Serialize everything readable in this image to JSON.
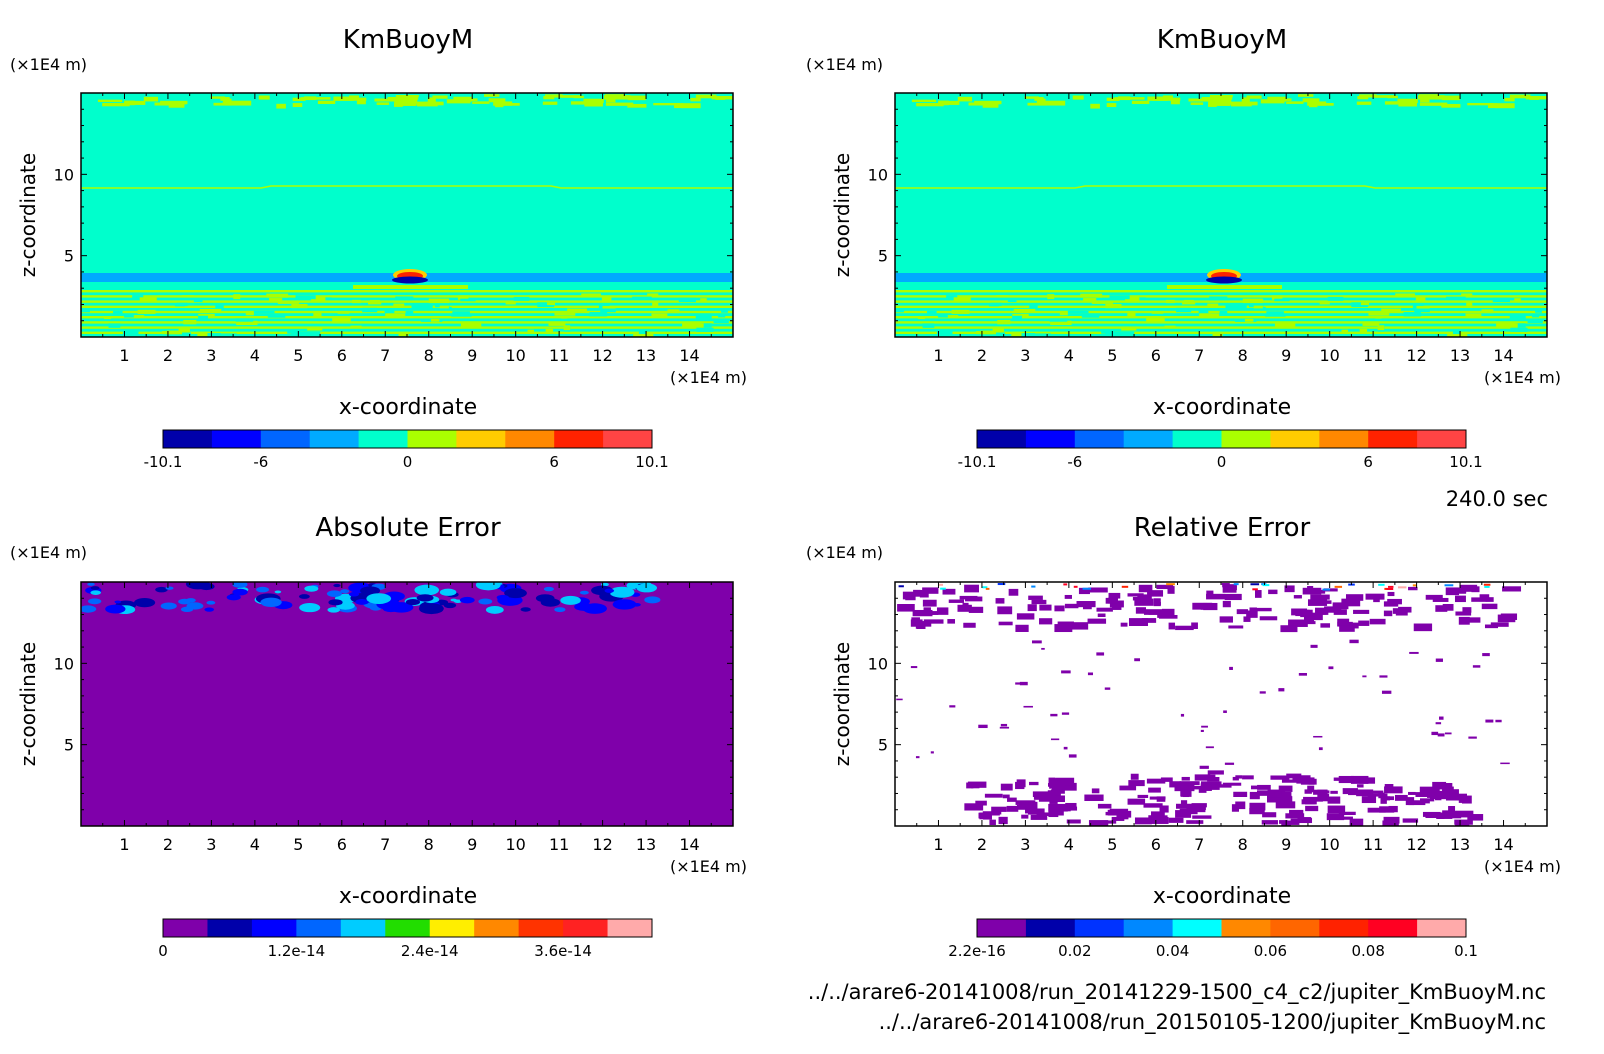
{
  "time_label": "240.0 sec",
  "files": [
    "../../arare6-20141008/run_20141229-1500_c4_c2/jupiter_KmBuoyM.nc",
    "../../arare6-20141008/run_20150105-1200/jupiter_KmBuoyM.nc"
  ],
  "colors": {
    "background_field": "#00ffcc",
    "error_field": "#7f00aa"
  },
  "chart_data": [
    {
      "type": "heatmap",
      "title": "KmBuoyM",
      "xlabel": "x-coordinate",
      "ylabel": "z-coordinate",
      "x_unit": "(×1E4 m)",
      "y_unit": "(×1E4 m)",
      "x_ticks": [
        "1",
        "2",
        "3",
        "4",
        "5",
        "6",
        "7",
        "8",
        "9",
        "10",
        "11",
        "12",
        "13",
        "14"
      ],
      "y_ticks": [
        "5",
        "10"
      ],
      "xlim": [
        0,
        15
      ],
      "ylim": [
        0,
        15
      ],
      "colorbar": {
        "ticks": [
          "-10.1",
          "-6",
          "0",
          "6",
          "10.1"
        ],
        "colors": [
          "#0000aa",
          "#0000ff",
          "#0066ff",
          "#00aaff",
          "#00ffcc",
          "#aaff00",
          "#ffcc00",
          "#ff8800",
          "#ff2200",
          "#ff4444"
        ]
      }
    },
    {
      "type": "heatmap",
      "title": "KmBuoyM",
      "xlabel": "x-coordinate",
      "ylabel": "z-coordinate",
      "x_unit": "(×1E4 m)",
      "y_unit": "(×1E4 m)",
      "x_ticks": [
        "1",
        "2",
        "3",
        "4",
        "5",
        "6",
        "7",
        "8",
        "9",
        "10",
        "11",
        "12",
        "13",
        "14"
      ],
      "y_ticks": [
        "5",
        "10"
      ],
      "xlim": [
        0,
        15
      ],
      "ylim": [
        0,
        15
      ],
      "colorbar": {
        "ticks": [
          "-10.1",
          "-6",
          "0",
          "6",
          "10.1"
        ],
        "colors": [
          "#0000aa",
          "#0000ff",
          "#0066ff",
          "#00aaff",
          "#00ffcc",
          "#aaff00",
          "#ffcc00",
          "#ff8800",
          "#ff2200",
          "#ff4444"
        ]
      }
    },
    {
      "type": "heatmap",
      "title": "Absolute Error",
      "xlabel": "x-coordinate",
      "ylabel": "z-coordinate",
      "x_unit": "(×1E4 m)",
      "y_unit": "(×1E4 m)",
      "x_ticks": [
        "1",
        "2",
        "3",
        "4",
        "5",
        "6",
        "7",
        "8",
        "9",
        "10",
        "11",
        "12",
        "13",
        "14"
      ],
      "y_ticks": [
        "5",
        "10"
      ],
      "xlim": [
        0,
        15
      ],
      "ylim": [
        0,
        15
      ],
      "colorbar": {
        "ticks": [
          "0",
          "1.2e-14",
          "2.4e-14",
          "3.6e-14"
        ],
        "colors": [
          "#7f00aa",
          "#0000aa",
          "#0000ff",
          "#0066ff",
          "#00ccff",
          "#22dd00",
          "#ffee00",
          "#ff8800",
          "#ff3300",
          "#ff2222",
          "#ffaaaa"
        ]
      }
    },
    {
      "type": "heatmap",
      "title": "Relative Error",
      "xlabel": "x-coordinate",
      "ylabel": "z-coordinate",
      "x_unit": "(×1E4 m)",
      "y_unit": "(×1E4 m)",
      "x_ticks": [
        "1",
        "2",
        "3",
        "4",
        "5",
        "6",
        "7",
        "8",
        "9",
        "10",
        "11",
        "12",
        "13",
        "14"
      ],
      "y_ticks": [
        "5",
        "10"
      ],
      "xlim": [
        0,
        15
      ],
      "ylim": [
        0,
        15
      ],
      "colorbar": {
        "ticks": [
          "2.2e-16",
          "0.02",
          "0.04",
          "0.06",
          "0.08",
          "0.1"
        ],
        "colors": [
          "#7f00aa",
          "#0000aa",
          "#0033ff",
          "#0088ff",
          "#00ffff",
          "#ff8800",
          "#ff6600",
          "#ff2200",
          "#ff0022",
          "#ffaaaa"
        ]
      }
    }
  ]
}
